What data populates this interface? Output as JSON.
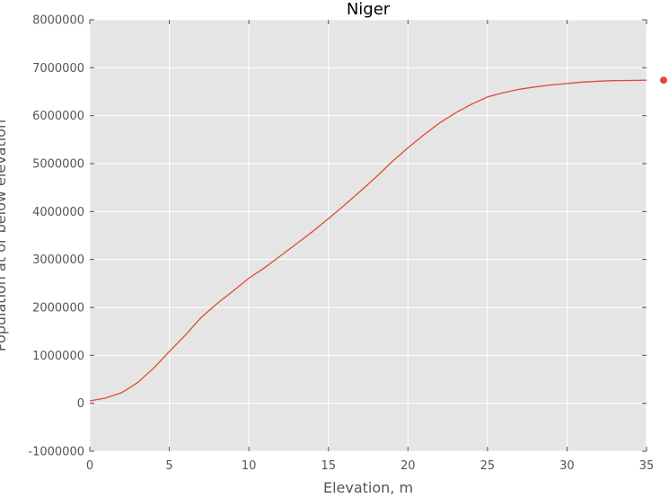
{
  "chart_data": {
    "type": "line",
    "title": "Niger",
    "xlabel": "Elevation, m",
    "ylabel": "Population at or below elevation",
    "xlim": [
      0,
      35
    ],
    "ylim": [
      -1000000,
      8000000
    ],
    "xticks": [
      0,
      5,
      10,
      15,
      20,
      25,
      30,
      35
    ],
    "yticks": [
      -1000000,
      0,
      1000000,
      2000000,
      3000000,
      4000000,
      5000000,
      6000000,
      7000000,
      8000000
    ],
    "grid": true,
    "series": [
      {
        "color": "#e24a33",
        "x": [
          0,
          1,
          2,
          3,
          4,
          5,
          6,
          7,
          8,
          9,
          10,
          11,
          12,
          13,
          14,
          15,
          16,
          17,
          18,
          19,
          20,
          21,
          22,
          23,
          24,
          25,
          26,
          27,
          28,
          29,
          30,
          31,
          32,
          33,
          34,
          35
        ],
        "y": [
          50000,
          110000,
          220000,
          430000,
          730000,
          1080000,
          1420000,
          1790000,
          2080000,
          2340000,
          2610000,
          2830000,
          3080000,
          3330000,
          3580000,
          3850000,
          4130000,
          4420000,
          4720000,
          5040000,
          5330000,
          5600000,
          5850000,
          6060000,
          6240000,
          6390000,
          6480000,
          6550000,
          6600000,
          6640000,
          6670000,
          6700000,
          6720000,
          6730000,
          6735000,
          6740000
        ]
      }
    ],
    "marker": {
      "x": 35,
      "y": 6740000,
      "color": "#e24a33"
    }
  },
  "colors": {
    "plot_background": "#e5e5e5",
    "grid": "#ffffff",
    "line": "#e24a33"
  }
}
